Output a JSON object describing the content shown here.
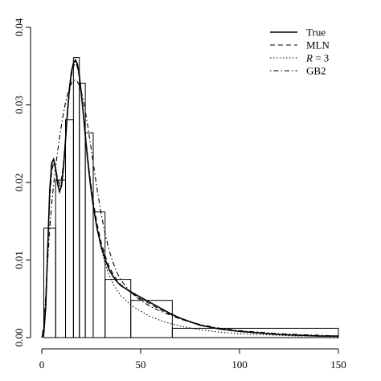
{
  "chart_data": {
    "type": "histogram",
    "title": "",
    "xlabel": "",
    "ylabel": "",
    "xlim": [
      0,
      150
    ],
    "ylim": [
      0,
      0.04
    ],
    "x_ticks": [
      "0",
      "50",
      "100",
      "150"
    ],
    "y_ticks": [
      "0.00",
      "0.01",
      "0.02",
      "0.03",
      "0.04"
    ],
    "x_tick_values": [
      0,
      50,
      100,
      150
    ],
    "y_tick_values": [
      0,
      0.01,
      0.02,
      0.03,
      0.04
    ],
    "grid": false,
    "legend_position": "top-right",
    "bins": [
      {
        "x0": 1,
        "x1": 7,
        "density": 0.0141
      },
      {
        "x0": 7,
        "x1": 12,
        "density": 0.0203
      },
      {
        "x0": 12,
        "x1": 16,
        "density": 0.0281
      },
      {
        "x0": 16,
        "x1": 19,
        "density": 0.0361
      },
      {
        "x0": 19,
        "x1": 22,
        "density": 0.0328
      },
      {
        "x0": 22,
        "x1": 26,
        "density": 0.0264
      },
      {
        "x0": 26,
        "x1": 32,
        "density": 0.0162
      },
      {
        "x0": 32,
        "x1": 45,
        "density": 0.0075
      },
      {
        "x0": 45,
        "x1": 66,
        "density": 0.0048
      },
      {
        "x0": 66,
        "x1": 150,
        "density": 0.0012
      }
    ],
    "series": [
      {
        "name": "True",
        "style": "solid",
        "x": [
          0,
          1,
          2,
          3,
          4,
          5,
          6,
          7,
          8,
          9,
          10,
          11,
          12,
          13,
          14,
          15,
          16,
          17,
          18,
          19,
          20,
          21,
          22,
          23,
          24,
          25,
          26,
          28,
          30,
          32,
          34,
          36,
          38,
          40,
          45,
          50,
          55,
          60,
          65,
          70,
          80,
          90,
          100,
          110,
          120,
          130,
          140,
          150
        ],
        "y": [
          0.0,
          0.0005,
          0.004,
          0.0115,
          0.019,
          0.0225,
          0.023,
          0.0218,
          0.0198,
          0.0188,
          0.0196,
          0.022,
          0.0255,
          0.0292,
          0.0322,
          0.0343,
          0.0354,
          0.0358,
          0.0353,
          0.0338,
          0.0315,
          0.0288,
          0.026,
          0.0234,
          0.021,
          0.0189,
          0.017,
          0.014,
          0.0118,
          0.0101,
          0.0088,
          0.0079,
          0.0072,
          0.0067,
          0.0059,
          0.0052,
          0.0045,
          0.0038,
          0.0031,
          0.0025,
          0.0016,
          0.0011,
          0.0008,
          0.0006,
          0.0004,
          0.0003,
          0.0002,
          0.0002
        ]
      },
      {
        "name": "MLN",
        "style": "dashed",
        "x": [
          0,
          1,
          2,
          3,
          4,
          5,
          6,
          7,
          8,
          9,
          10,
          11,
          12,
          13,
          14,
          15,
          16,
          17,
          18,
          19,
          20,
          21,
          22,
          23,
          24,
          25,
          26,
          28,
          30,
          32,
          34,
          36,
          38,
          40,
          45,
          50,
          55,
          60,
          65,
          70,
          80,
          90,
          100,
          110,
          120,
          130,
          140,
          150
        ],
        "y": [
          0.0,
          0.001,
          0.005,
          0.012,
          0.018,
          0.0215,
          0.0225,
          0.0218,
          0.0205,
          0.0198,
          0.0205,
          0.0225,
          0.0255,
          0.0288,
          0.0317,
          0.0338,
          0.035,
          0.0354,
          0.0349,
          0.0335,
          0.0314,
          0.0289,
          0.0263,
          0.0238,
          0.0215,
          0.0194,
          0.0176,
          0.0146,
          0.0123,
          0.0106,
          0.0092,
          0.0082,
          0.0074,
          0.0068,
          0.0058,
          0.005,
          0.0043,
          0.0036,
          0.003,
          0.0024,
          0.0016,
          0.0011,
          0.0008,
          0.0006,
          0.0004,
          0.0003,
          0.0002,
          0.0002
        ]
      },
      {
        "name": "R = 3",
        "style": "dotted",
        "x": [
          0,
          1,
          2,
          3,
          4,
          5,
          6,
          7,
          8,
          9,
          10,
          11,
          12,
          13,
          14,
          15,
          16,
          17,
          18,
          19,
          20,
          21,
          22,
          23,
          24,
          25,
          26,
          28,
          30,
          32,
          34,
          36,
          38,
          40,
          45,
          50,
          55,
          60,
          65,
          70,
          80,
          90,
          100,
          110,
          120,
          130,
          140,
          150
        ],
        "y": [
          0.0,
          0.001,
          0.0045,
          0.011,
          0.0178,
          0.0216,
          0.0228,
          0.022,
          0.0203,
          0.0194,
          0.0202,
          0.0223,
          0.0254,
          0.0289,
          0.0319,
          0.034,
          0.0352,
          0.0356,
          0.0351,
          0.0337,
          0.0316,
          0.029,
          0.0263,
          0.0237,
          0.0213,
          0.0192,
          0.0172,
          0.014,
          0.0115,
          0.0096,
          0.0081,
          0.007,
          0.0061,
          0.0054,
          0.0042,
          0.0034,
          0.0027,
          0.0022,
          0.0018,
          0.0015,
          0.001,
          0.0007,
          0.0005,
          0.0004,
          0.0003,
          0.0002,
          0.0002,
          0.0001
        ]
      },
      {
        "name": "GB2",
        "style": "dotdash",
        "x": [
          0,
          1,
          2,
          3,
          4,
          5,
          6,
          7,
          8,
          9,
          10,
          11,
          12,
          13,
          14,
          15,
          16,
          17,
          18,
          19,
          20,
          21,
          22,
          23,
          24,
          25,
          26,
          28,
          30,
          32,
          34,
          36,
          38,
          40,
          45,
          50,
          55,
          60,
          65,
          70,
          80,
          90,
          100,
          110,
          120,
          130,
          140,
          150
        ],
        "y": [
          0.0,
          0.0015,
          0.0055,
          0.01,
          0.014,
          0.0172,
          0.0198,
          0.022,
          0.024,
          0.0258,
          0.0275,
          0.029,
          0.0303,
          0.0314,
          0.0322,
          0.0328,
          0.0331,
          0.0332,
          0.033,
          0.0325,
          0.0317,
          0.0306,
          0.0292,
          0.0277,
          0.026,
          0.0243,
          0.0225,
          0.0191,
          0.016,
          0.0134,
          0.0113,
          0.0097,
          0.0084,
          0.0074,
          0.0058,
          0.0048,
          0.004,
          0.0034,
          0.0029,
          0.0024,
          0.0017,
          0.0012,
          0.0009,
          0.0007,
          0.0005,
          0.0004,
          0.0003,
          0.0002
        ]
      }
    ],
    "legend": [
      {
        "label": "True",
        "style": "solid"
      },
      {
        "label": "MLN",
        "style": "dashed"
      },
      {
        "label_italic": "R",
        "label_rest": " = 3",
        "style": "dotted"
      },
      {
        "label": "GB2",
        "style": "dotdash"
      }
    ]
  }
}
